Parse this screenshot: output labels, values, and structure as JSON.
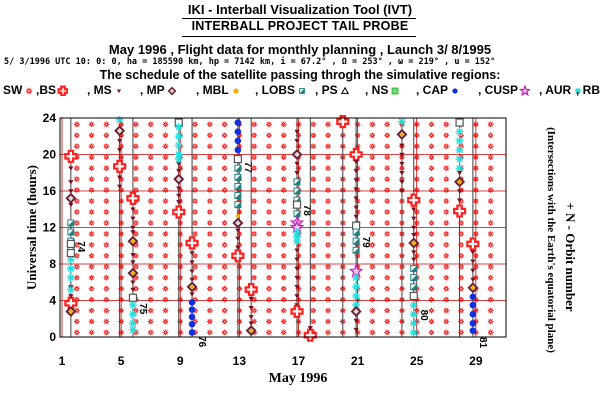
{
  "header": {
    "tool_title": "IKI - Interball Visualization Tool (IVT)",
    "probe_title": "INTERBALL PROJECT TAIL PROBE",
    "flight_line": "May      1996 ,  Flight data for monthly planning ,   Launch  3/ 8/1995",
    "orbit_params": "5/ 3/1996 UTC 10: 0: 0, ha = 185590 km, hp =   7142 km, i = 67.2° , Ω = 253° , ω = 219° , u = 152°",
    "schedule_line": "The schedule of the satellite passing throgh the simulative regions:"
  },
  "legend": [
    {
      "label": "SW",
      "region": "solar-wind",
      "color": "#ff2020",
      "icon": "spiky-circle-icon"
    },
    {
      "label": ",BS",
      "region": "bow-shock",
      "color": "#ff2020",
      "icon": "cross-icon"
    },
    {
      "label": ", MS",
      "region": "magnetosheath",
      "color": "#7a1020",
      "icon": "small-triangle-icon"
    },
    {
      "label": ", MP",
      "region": "magnetopause",
      "color": "#6a2030",
      "icon": "diamond-icon"
    },
    {
      "label": ", MBL",
      "region": "mantle-boundary-layer",
      "color": "#f0b000",
      "icon": "dot-icon"
    },
    {
      "label": ", LOBS",
      "region": "lobes",
      "color": "#208080",
      "icon": "half-square-icon"
    },
    {
      "label": ", PS",
      "region": "plasma-sheet",
      "color": "#000000",
      "icon": "triangle-outline-icon"
    },
    {
      "label": ", NS",
      "region": "neutral-sheet",
      "color": "#20c020",
      "icon": "square-outline-icon"
    },
    {
      "label": ", CAP",
      "region": "polar-cap",
      "color": "#1030e0",
      "icon": "dot-icon"
    },
    {
      "label": ", CUSP",
      "region": "cusp",
      "color": "#c020c0",
      "icon": "star-icon"
    },
    {
      "label": ", AUR",
      "region": "auroral",
      "color": "#20e0e0",
      "icon": "asterisk-icon"
    },
    {
      "label": ", RB",
      "region": "radiation-belt",
      "color": "#555555",
      "icon": "square-outline-icon"
    }
  ],
  "colors": {
    "sw": "#ff2020",
    "bs": "#ff2020",
    "ms": "#7a1020",
    "mp": "#6a2030",
    "mbl": "#f0b000",
    "lobs": "#208080",
    "ps": "#000000",
    "ns": "#20c020",
    "cap": "#1030e0",
    "cusp": "#c020c0",
    "aur": "#20e0e0",
    "rb": "#555555",
    "grid": "#cc0000",
    "orbit_line": "#404040"
  },
  "chart_data": {
    "type": "scatter",
    "title": "",
    "xlabel": "May      1996",
    "ylabel": "Universal time (hours)",
    "right_label": "+ N - Orbit number",
    "right_sublabel": "(Intersections with the Earth's equatorial plane)",
    "xlim": [
      0.5,
      31.5
    ],
    "ylim": [
      0,
      24
    ],
    "x_ticks": [
      1,
      5,
      9,
      13,
      17,
      21,
      25,
      29
    ],
    "y_ticks": [
      0,
      4,
      8,
      12,
      16,
      20,
      24
    ],
    "grid": true,
    "background_region": "SW",
    "passes": [
      {
        "x_start": 1.6,
        "x_end": 1.6,
        "y_start": 0,
        "y_end": 24,
        "segments": [
          {
            "region": "BS",
            "y": [
              19.8,
              3.7
            ]
          },
          {
            "region": "MS",
            "y": [
              18.5,
              17,
              16,
              14.5,
              5.5,
              4.5
            ]
          },
          {
            "region": "MP",
            "y": [
              15.2,
              2.8
            ]
          },
          {
            "region": "MBL",
            "y": [
              2.8
            ]
          },
          {
            "region": "LOBS",
            "y": [
              12.5,
              11.5,
              10.5,
              9.5
            ]
          },
          {
            "region": "AUR",
            "y": [
              8.5,
              7.5,
              6.5,
              5.2
            ]
          },
          {
            "region": "RB",
            "y": [
              10.2,
              9.2
            ]
          }
        ],
        "orbit_label": "74",
        "label_y": 10.5
      },
      {
        "x_start": 4.9,
        "x_end": 5.1,
        "y_start": 0,
        "y_end": 24,
        "segments": [
          {
            "region": "MP",
            "y": [
              22.6
            ]
          },
          {
            "region": "AUR",
            "y": [
              23.8
            ]
          },
          {
            "region": "BS",
            "y": [
              18.7
            ]
          },
          {
            "region": "MS",
            "y": [
              21.5,
              20.5,
              17.5,
              16.5
            ]
          }
        ]
      },
      {
        "x_start": 5.8,
        "x_end": 5.8,
        "y_start": 0,
        "y_end": 24,
        "segments": [
          {
            "region": "BS",
            "y": [
              15.2
            ]
          },
          {
            "region": "MP",
            "y": [
              10.5,
              7.0
            ]
          },
          {
            "region": "MBL",
            "y": [
              10.5,
              7.0
            ]
          },
          {
            "region": "MS",
            "y": [
              14,
              13,
              12,
              11.5,
              9,
              8.2,
              6,
              5.2
            ]
          },
          {
            "region": "AUR",
            "y": [
              3.5,
              2.5,
              1.5,
              0.8
            ]
          },
          {
            "region": "LOBS",
            "y": [
              4.3
            ]
          },
          {
            "region": "RB",
            "y": [
              4.3
            ]
          }
        ],
        "orbit_label": "75",
        "label_y": 3.7
      },
      {
        "x_start": 8.9,
        "x_end": 8.9,
        "y_start": 0,
        "y_end": 24,
        "segments": [
          {
            "region": "MP",
            "y": [
              17.3
            ]
          },
          {
            "region": "BS",
            "y": [
              13.7
            ]
          },
          {
            "region": "MS",
            "y": [
              19,
              18.2,
              16.3,
              15.5,
              14.8
            ]
          },
          {
            "region": "RB",
            "y": [
              23.5
            ]
          },
          {
            "region": "AUR",
            "y": [
              23,
              22,
              21,
              20,
              19.5
            ]
          }
        ]
      },
      {
        "x_start": 9.8,
        "x_end": 9.8,
        "y_start": 0,
        "y_end": 24,
        "segments": [
          {
            "region": "BS",
            "y": [
              10.3
            ]
          },
          {
            "region": "MP",
            "y": [
              5.5
            ]
          },
          {
            "region": "MBL",
            "y": [
              5.5
            ]
          },
          {
            "region": "MS",
            "y": [
              9.2,
              8.2,
              7.2,
              6.3,
              4.7
            ]
          },
          {
            "region": "CAP",
            "y": [
              3.8,
              3.0,
              2.2,
              1.4,
              0.5
            ]
          }
        ],
        "orbit_label": "76",
        "label_y": 0.1
      },
      {
        "x_start": 12.9,
        "x_end": 12.9,
        "y_start": 0,
        "y_end": 24,
        "segments": [
          {
            "region": "CAP",
            "y": [
              23.5,
              22.5,
              21.5,
              20.5
            ]
          },
          {
            "region": "RB",
            "y": [
              19.5
            ]
          },
          {
            "region": "LOBS",
            "y": [
              18.5,
              17.5,
              16.5,
              15.5,
              14.5
            ]
          },
          {
            "region": "MBL",
            "y": [
              13.3
            ]
          },
          {
            "region": "MP",
            "y": [
              12.5
            ]
          },
          {
            "region": "MS",
            "y": [
              11.7,
              10.8,
              9.8
            ]
          },
          {
            "region": "BS",
            "y": [
              8.9
            ]
          }
        ],
        "orbit_label": "77",
        "label_y": 19.2
      },
      {
        "x_start": 13.8,
        "x_end": 13.8,
        "y_start": 0,
        "y_end": 24,
        "segments": [
          {
            "region": "BS",
            "y": [
              5.2
            ]
          },
          {
            "region": "MP",
            "y": [
              0.7
            ]
          },
          {
            "region": "MBL",
            "y": [
              0.7
            ]
          },
          {
            "region": "MS",
            "y": [
              4.2,
              3.2,
              2.2,
              1.5
            ]
          }
        ]
      },
      {
        "x_start": 16.9,
        "x_end": 16.9,
        "y_start": 0,
        "y_end": 24,
        "segments": [
          {
            "region": "MP",
            "y": [
              20.0
            ]
          },
          {
            "region": "MS",
            "y": [
              21.5,
              22.5,
              19.0,
              18.0
            ]
          },
          {
            "region": "LOBS",
            "y": [
              17.0,
              16.0,
              15.0,
              14.5,
              13.5
            ]
          },
          {
            "region": "RB",
            "y": [
              14.5
            ]
          },
          {
            "region": "CUSP",
            "y": [
              12.5,
              12.0
            ]
          },
          {
            "region": "AUR",
            "y": [
              11.5,
              11.0,
              10.5
            ]
          },
          {
            "region": "MS",
            "y": [
              9.5,
              8.5,
              7.5,
              6.5,
              5.5,
              4.5,
              3.5
            ]
          },
          {
            "region": "BS",
            "y": [
              2.8
            ]
          }
        ],
        "orbit_label": "78",
        "label_y": 14.5
      },
      {
        "x_start": 17.8,
        "x_end": 17.8,
        "y_start": 0,
        "y_end": 24,
        "segments": [
          {
            "region": "BS",
            "y": [
              0.2
            ]
          },
          {
            "region": "MS",
            "y": [
              1.0
            ]
          }
        ]
      },
      {
        "x_start": 20.9,
        "x_end": 20.9,
        "y_start": 0,
        "y_end": 24,
        "segments": [
          {
            "region": "BS",
            "y": [
              20.0
            ]
          },
          {
            "region": "MS",
            "y": [
              19.2,
              18.2,
              17.2,
              16.2,
              15.2,
              14.2,
              13.2
            ]
          },
          {
            "region": "RB",
            "y": [
              12.2
            ]
          },
          {
            "region": "LOBS",
            "y": [
              11.5,
              10.5,
              9.5
            ]
          },
          {
            "region": "CUSP",
            "y": [
              7.2
            ]
          },
          {
            "region": "AUR",
            "y": [
              6.5,
              5.5,
              4.5,
              3.5
            ]
          },
          {
            "region": "MBL",
            "y": [
              2.8
            ]
          },
          {
            "region": "MP",
            "y": [
              2.8
            ]
          },
          {
            "region": "MS",
            "y": [
              1.8,
              0.8
            ]
          }
        ],
        "orbit_label": "79",
        "label_y": 11.0
      },
      {
        "x_start": 20.0,
        "x_end": 20.0,
        "y_start": 0,
        "y_end": 24,
        "segments": [
          {
            "region": "BS",
            "y": [
              23.6
            ]
          }
        ]
      },
      {
        "x_start": 24.0,
        "x_end": 24.0,
        "y_start": 0,
        "y_end": 24,
        "segments": [
          {
            "region": "MP",
            "y": [
              22.2
            ]
          },
          {
            "region": "MBL",
            "y": [
              22.2
            ]
          },
          {
            "region": "AUR",
            "y": [
              23.6
            ]
          },
          {
            "region": "MS",
            "y": [
              21.0,
              20.0,
              19.0,
              18.0,
              17.0,
              16.0
            ]
          }
        ]
      },
      {
        "x_start": 24.8,
        "x_end": 24.8,
        "y_start": 0,
        "y_end": 24,
        "segments": [
          {
            "region": "BS",
            "y": [
              15.0
            ]
          },
          {
            "region": "MS",
            "y": [
              14.0,
              13.0,
              12.0,
              11.2
            ]
          },
          {
            "region": "MP",
            "y": [
              10.3
            ]
          },
          {
            "region": "MBL",
            "y": [
              10.3
            ]
          },
          {
            "region": "MS",
            "y": [
              9.3,
              8.5
            ]
          },
          {
            "region": "LOBS",
            "y": [
              7.5,
              6.5,
              5.5
            ]
          },
          {
            "region": "RB",
            "y": [
              4.5
            ]
          },
          {
            "region": "AUR",
            "y": [
              3.5,
              2.5,
              1.5,
              0.5
            ]
          }
        ],
        "orbit_label": "80",
        "label_y": 3.0
      },
      {
        "x_start": 27.9,
        "x_end": 27.9,
        "y_start": 0,
        "y_end": 24,
        "segments": [
          {
            "region": "RB",
            "y": [
              23.5
            ]
          },
          {
            "region": "AUR",
            "y": [
              22.5,
              21.5,
              20.5,
              19.5,
              18.5
            ]
          },
          {
            "region": "MP",
            "y": [
              17.0
            ]
          },
          {
            "region": "MBL",
            "y": [
              17.0
            ]
          },
          {
            "region": "MS",
            "y": [
              18.0,
              16.0,
              15.0
            ]
          },
          {
            "region": "BS",
            "y": [
              13.8
            ]
          }
        ]
      },
      {
        "x_start": 28.8,
        "x_end": 28.8,
        "y_start": 0,
        "y_end": 24,
        "segments": [
          {
            "region": "BS",
            "y": [
              10.2
            ]
          },
          {
            "region": "MS",
            "y": [
              9.3,
              8.3,
              7.3,
              6.3
            ]
          },
          {
            "region": "MP",
            "y": [
              5.4
            ]
          },
          {
            "region": "MBL",
            "y": [
              5.4
            ]
          },
          {
            "region": "CAP",
            "y": [
              4.4,
              3.5,
              2.5,
              1.5,
              0.7
            ]
          }
        ],
        "orbit_label": "81",
        "label_y": 0.0
      }
    ]
  }
}
